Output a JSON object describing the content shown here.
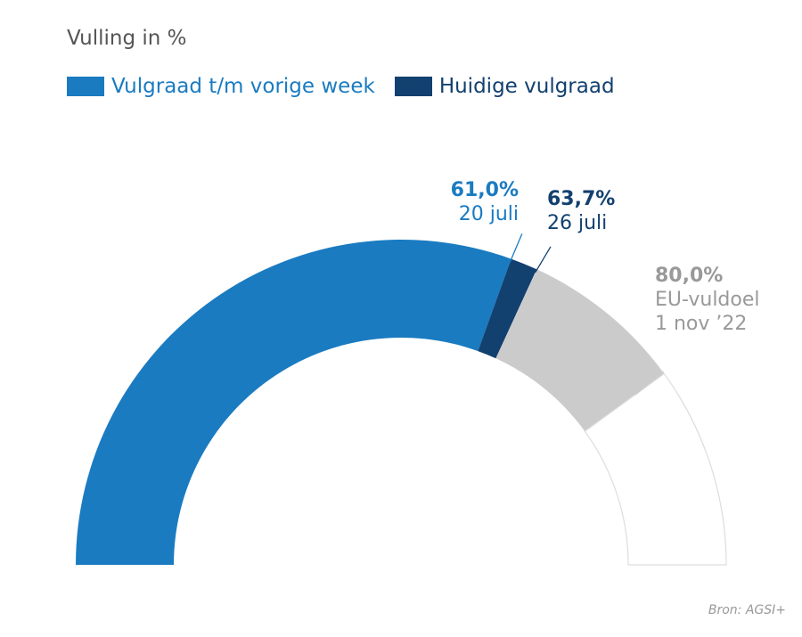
{
  "chart_data": {
    "type": "gauge",
    "title": "Vulling in %",
    "range": [
      0,
      100
    ],
    "legend": [
      {
        "label": "Vulgraad t/m vorige week",
        "color": "#1a7bc1"
      },
      {
        "label": "Huidige vulgraad",
        "color": "#12406f"
      }
    ],
    "segments": [
      {
        "name": "Vulgraad t/m vorige week",
        "from": 0,
        "to": 61.0,
        "color": "#1a7bc1"
      },
      {
        "name": "Huidige vulgraad",
        "from": 61.0,
        "to": 63.7,
        "color": "#12406f"
      },
      {
        "name": "EU-vuldoel",
        "from": 63.7,
        "to": 80.0,
        "color": "#cccbcb"
      },
      {
        "name": "Rest",
        "from": 80.0,
        "to": 100,
        "color": "#ffffff"
      }
    ],
    "annotations": [
      {
        "value": 61.0,
        "value_label": "61,0%",
        "text": "20 juli",
        "color": "#1a7bc1"
      },
      {
        "value": 63.7,
        "value_label": "63,7%",
        "text": "26 juli",
        "color": "#12406f"
      },
      {
        "value": 80.0,
        "value_label": "80,0%",
        "text": "EU-vuldoel",
        "text2": "1 nov ’22",
        "color": "#999999"
      }
    ],
    "source": "Bron: AGSI+"
  }
}
